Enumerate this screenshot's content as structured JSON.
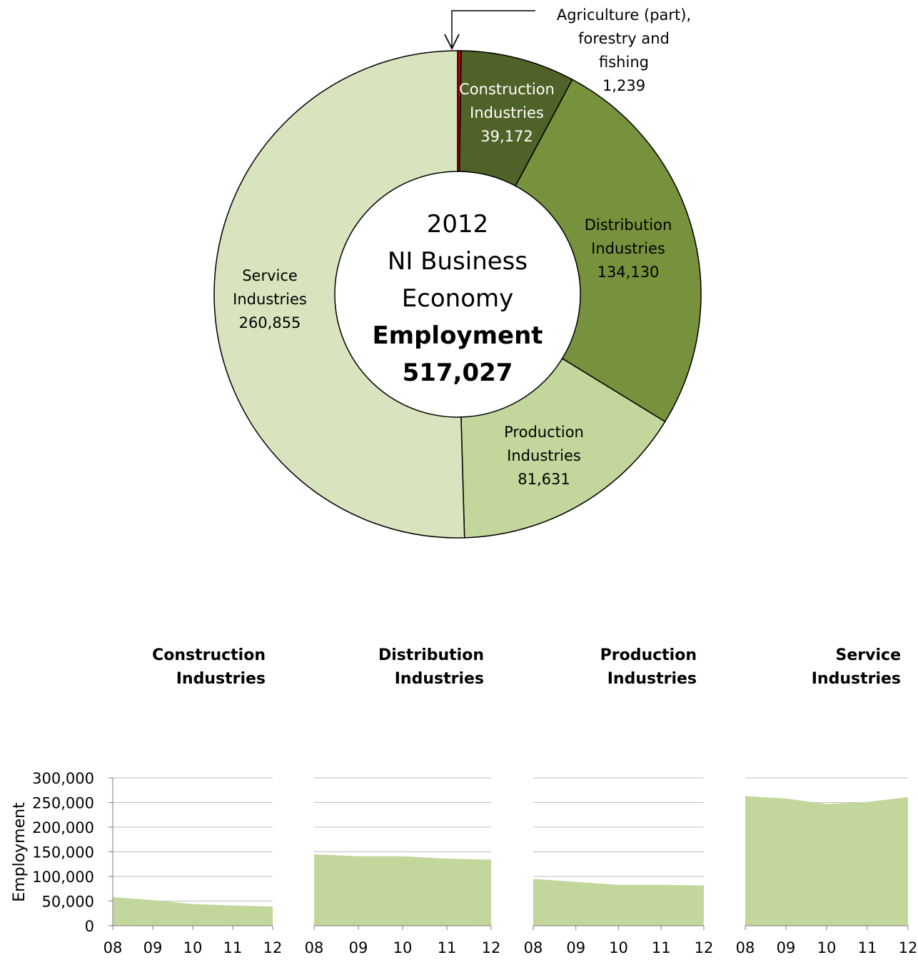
{
  "chart_data": [
    {
      "type": "pie",
      "variant": "donut",
      "center_text": {
        "line1": "2012",
        "line2": "NI Business",
        "line3": "Economy",
        "line4": "Employment",
        "line5": "517,027"
      },
      "slices": [
        {
          "name_lines": [
            "Agriculture (part),",
            "forestry and",
            "fishing"
          ],
          "value": 1239,
          "value_label": "1,239",
          "color": "#C00000"
        },
        {
          "name_lines": [
            "Construction",
            "Industries"
          ],
          "value": 39172,
          "value_label": "39,172",
          "color": "#4F6228"
        },
        {
          "name_lines": [
            "Distribution",
            "Industries"
          ],
          "value": 134130,
          "value_label": "134,130",
          "color": "#76923C"
        },
        {
          "name_lines": [
            "Production",
            "Industries"
          ],
          "value": 81631,
          "value_label": "81,631",
          "color": "#C3D69B"
        },
        {
          "name_lines": [
            "Service",
            "Industries"
          ],
          "value": 260855,
          "value_label": "260,855",
          "color": "#D7E4BD"
        }
      ],
      "total": 517027
    },
    {
      "type": "area",
      "ylabel": "Employment",
      "ylim": [
        0,
        300000
      ],
      "yticks": [
        0,
        50000,
        100000,
        150000,
        200000,
        250000,
        300000
      ],
      "ytick_labels": [
        "0",
        "50,000",
        "100,000",
        "150,000",
        "200,000",
        "250,000",
        "300,000"
      ],
      "grid": true,
      "color": "#C3D69B",
      "categories": [
        "08",
        "09",
        "10",
        "11",
        "12"
      ],
      "series": [
        {
          "name_lines": [
            "Construction",
            "Industries"
          ],
          "values": [
            58000,
            52000,
            44000,
            41000,
            39172
          ]
        },
        {
          "name_lines": [
            "Distribution",
            "Industries"
          ],
          "values": [
            145000,
            141000,
            141000,
            136000,
            134130
          ]
        },
        {
          "name_lines": [
            "Production",
            "Industries"
          ],
          "values": [
            95000,
            89000,
            83000,
            83000,
            81631
          ]
        },
        {
          "name_lines": [
            "Service",
            "Industries"
          ],
          "values": [
            263000,
            258000,
            247000,
            251000,
            260855
          ]
        }
      ]
    }
  ]
}
